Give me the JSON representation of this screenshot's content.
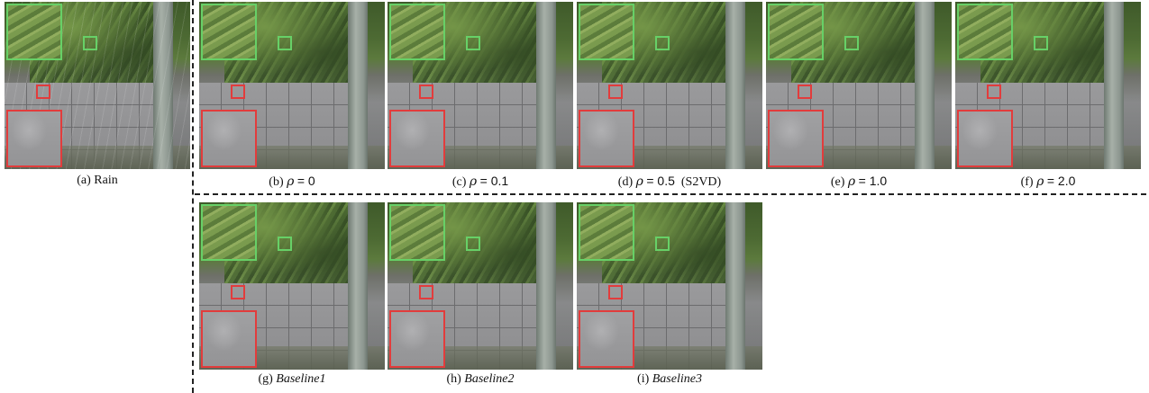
{
  "panels": [
    {
      "id": "a",
      "label": "(a)",
      "text": "Rain"
    },
    {
      "id": "b",
      "label": "(b)",
      "rho": "ρ",
      "eq": "= 0"
    },
    {
      "id": "c",
      "label": "(c)",
      "rho": "ρ",
      "eq": "= 0.1"
    },
    {
      "id": "d",
      "label": "(d)",
      "rho": "ρ",
      "eq": "= 0.5",
      "suffix": "(S2VD)"
    },
    {
      "id": "e",
      "label": "(e)",
      "rho": "ρ",
      "eq": "= 1.0"
    },
    {
      "id": "f",
      "label": "(f)",
      "rho": "ρ",
      "eq": "= 2.0"
    },
    {
      "id": "g",
      "label": "(g)",
      "text": "Baseline1"
    },
    {
      "id": "h",
      "label": "(h)",
      "text": "Baseline2"
    },
    {
      "id": "i",
      "label": "(i)",
      "text": "Baseline3"
    }
  ],
  "colors": {
    "zoom_green": "#67d067",
    "zoom_red": "#e23c3c",
    "separator": "#222222"
  }
}
